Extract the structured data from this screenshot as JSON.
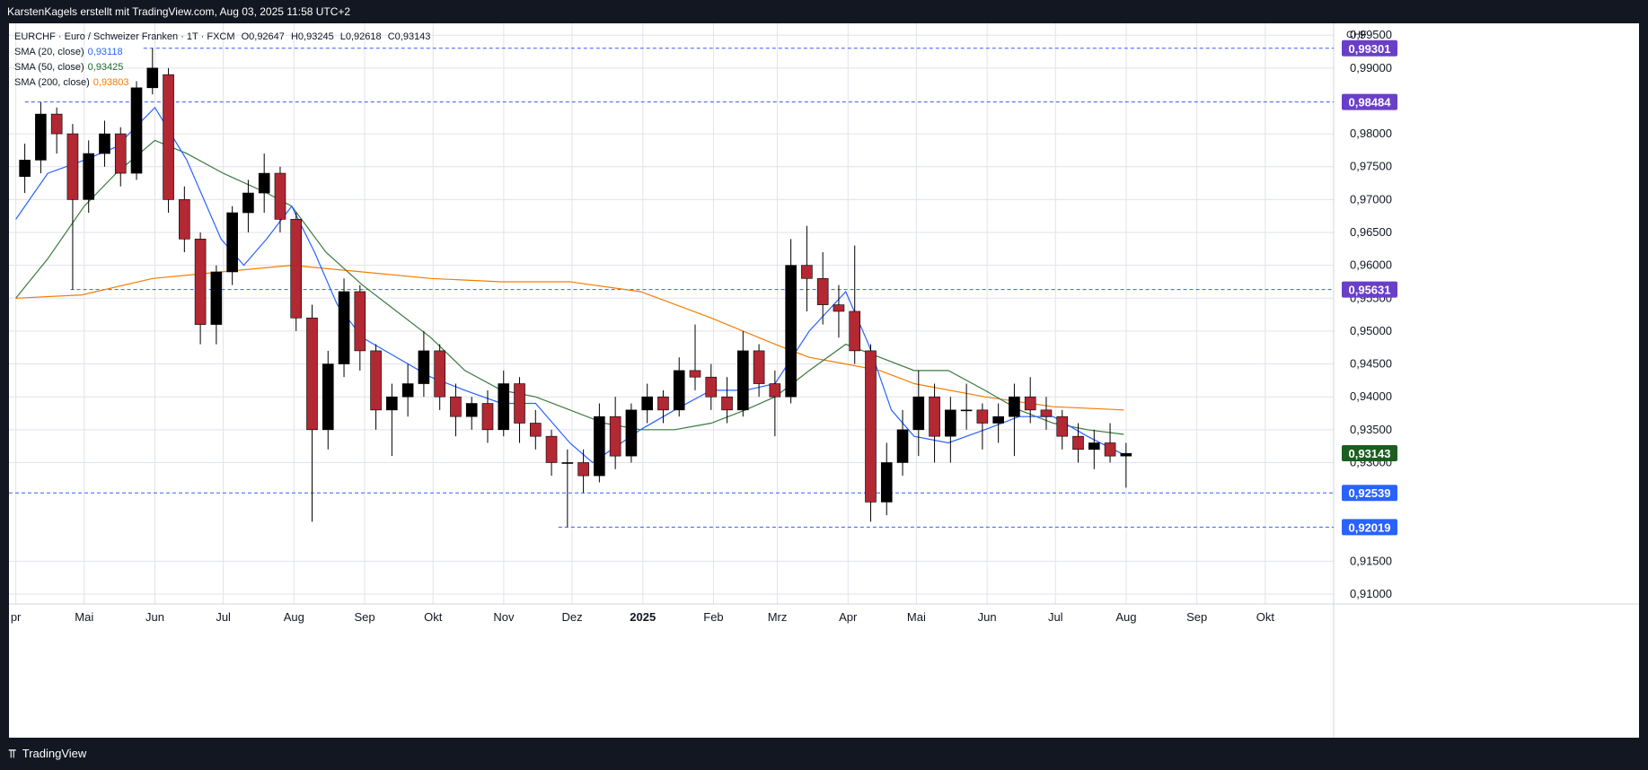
{
  "header": {
    "text": "KarstenKagels erstellt mit TradingView.com, Aug 03, 2025 11:58 UTC+2"
  },
  "footer": {
    "brand": "TradingView"
  },
  "legend": {
    "symbol": "EURCHF · Euro / Schweizer Franken · 1T · FXCM",
    "ohlc": {
      "o_label": "O",
      "o": "0,92647",
      "h_label": "H",
      "h": "0,93245",
      "l_label": "L",
      "l": "0,92618",
      "c_label": "C",
      "c": "0,93143"
    },
    "indicators": [
      {
        "label": "SMA (20, close)",
        "value": "0,93118",
        "color": "#2962ff"
      },
      {
        "label": "SMA (50, close)",
        "value": "0,93425",
        "color": "#1e6b2e"
      },
      {
        "label": "SMA (200, close)",
        "value": "0,93803",
        "color": "#f57c00"
      }
    ]
  },
  "colors": {
    "up": "#000000",
    "down": "#b22833",
    "grid": "#e0e3eb",
    "hline": "#3d5afe",
    "purple": "#6a3fc8",
    "blue": "#2962ff",
    "green_label": "#1b5e20"
  },
  "chart_data": {
    "type": "candlestick",
    "currency": "CHF",
    "ylim": [
      0.9085,
      0.9968
    ],
    "y_ticks": [
      "0,99500",
      "0,99000",
      "0,98000",
      "0,97500",
      "0,97000",
      "0,96500",
      "0,96000",
      "0,95500",
      "0,95000",
      "0,94500",
      "0,94000",
      "0,93500",
      "0,93000",
      "0,91500",
      "0,91000"
    ],
    "y_tick_values": [
      0.995,
      0.99,
      0.98,
      0.975,
      0.97,
      0.965,
      0.96,
      0.955,
      0.95,
      0.945,
      0.94,
      0.935,
      0.93,
      0.915,
      0.91
    ],
    "x_ticks": [
      {
        "label": "pr",
        "date": "2024-04-01"
      },
      {
        "label": "Mai",
        "date": "2024-05-01"
      },
      {
        "label": "Jun",
        "date": "2024-06-01"
      },
      {
        "label": "Jul",
        "date": "2024-07-01"
      },
      {
        "label": "Aug",
        "date": "2024-08-01"
      },
      {
        "label": "Sep",
        "date": "2024-09-01"
      },
      {
        "label": "Okt",
        "date": "2024-10-01"
      },
      {
        "label": "Nov",
        "date": "2024-11-01"
      },
      {
        "label": "Dez",
        "date": "2024-12-01"
      },
      {
        "label": "2025",
        "date": "2025-01-01",
        "bold": true
      },
      {
        "label": "Feb",
        "date": "2025-02-01"
      },
      {
        "label": "Mrz",
        "date": "2025-03-01"
      },
      {
        "label": "Apr",
        "date": "2025-04-01"
      },
      {
        "label": "Mai",
        "date": "2025-05-01"
      },
      {
        "label": "Jun",
        "date": "2025-06-01"
      },
      {
        "label": "Jul",
        "date": "2025-07-01"
      },
      {
        "label": "Aug",
        "date": "2025-08-01"
      },
      {
        "label": "Sep",
        "date": "2025-09-01"
      },
      {
        "label": "Okt",
        "date": "2025-10-01"
      }
    ],
    "x_range": [
      "2024-03-29",
      "2025-10-31"
    ],
    "price_labels": [
      {
        "text": "0,99301",
        "value": 0.99301,
        "color": "purple",
        "line_start": "2024-05-27"
      },
      {
        "text": "0,98484",
        "value": 0.98484,
        "color": "purple",
        "line_start": "2024-04-05"
      },
      {
        "text": "0,95631",
        "value": 0.95631,
        "color": "purple",
        "line_start": "2024-04-25"
      },
      {
        "text": "0,93143",
        "value": 0.93143,
        "color": "green",
        "line_start": null
      },
      {
        "text": "0,92539",
        "value": 0.92539,
        "color": "blue",
        "line_start": "2024-03-29"
      },
      {
        "text": "0,92019",
        "value": 0.92019,
        "color": "blue",
        "line_start": "2024-11-25"
      }
    ],
    "candles": [
      [
        "2024-04-01",
        0.9735,
        0.9785,
        0.971,
        0.976
      ],
      [
        "2024-04-08",
        0.976,
        0.9848,
        0.974,
        0.983
      ],
      [
        "2024-04-15",
        0.983,
        0.984,
        0.977,
        0.98
      ],
      [
        "2024-04-22",
        0.98,
        0.9815,
        0.9563,
        0.97
      ],
      [
        "2024-04-29",
        0.97,
        0.979,
        0.968,
        0.977
      ],
      [
        "2024-05-06",
        0.977,
        0.982,
        0.975,
        0.98
      ],
      [
        "2024-05-13",
        0.98,
        0.981,
        0.972,
        0.974
      ],
      [
        "2024-05-20",
        0.974,
        0.988,
        0.973,
        0.987
      ],
      [
        "2024-05-27",
        0.987,
        0.993,
        0.986,
        0.99
      ],
      [
        "2024-06-03",
        0.989,
        0.99,
        0.968,
        0.97
      ],
      [
        "2024-06-10",
        0.97,
        0.972,
        0.962,
        0.964
      ],
      [
        "2024-06-17",
        0.964,
        0.965,
        0.948,
        0.951
      ],
      [
        "2024-06-24",
        0.951,
        0.96,
        0.948,
        0.959
      ],
      [
        "2024-07-01",
        0.959,
        0.969,
        0.957,
        0.968
      ],
      [
        "2024-07-08",
        0.968,
        0.973,
        0.965,
        0.971
      ],
      [
        "2024-07-15",
        0.971,
        0.977,
        0.968,
        0.974
      ],
      [
        "2024-07-22",
        0.974,
        0.975,
        0.965,
        0.967
      ],
      [
        "2024-07-29",
        0.967,
        0.968,
        0.95,
        0.952
      ],
      [
        "2024-08-05",
        0.952,
        0.954,
        0.921,
        0.935
      ],
      [
        "2024-08-12",
        0.935,
        0.947,
        0.932,
        0.945
      ],
      [
        "2024-08-19",
        0.945,
        0.958,
        0.943,
        0.956
      ],
      [
        "2024-08-26",
        0.956,
        0.957,
        0.944,
        0.947
      ],
      [
        "2024-09-02",
        0.947,
        0.948,
        0.935,
        0.938
      ],
      [
        "2024-09-09",
        0.938,
        0.942,
        0.931,
        0.94
      ],
      [
        "2024-09-16",
        0.94,
        0.945,
        0.937,
        0.942
      ],
      [
        "2024-09-23",
        0.942,
        0.95,
        0.94,
        0.947
      ],
      [
        "2024-09-30",
        0.947,
        0.948,
        0.938,
        0.94
      ],
      [
        "2024-10-07",
        0.94,
        0.942,
        0.934,
        0.937
      ],
      [
        "2024-10-14",
        0.937,
        0.94,
        0.935,
        0.939
      ],
      [
        "2024-10-21",
        0.939,
        0.941,
        0.933,
        0.935
      ],
      [
        "2024-10-28",
        0.935,
        0.944,
        0.934,
        0.942
      ],
      [
        "2024-11-04",
        0.942,
        0.943,
        0.933,
        0.936
      ],
      [
        "2024-11-11",
        0.936,
        0.938,
        0.932,
        0.934
      ],
      [
        "2024-11-18",
        0.934,
        0.935,
        0.928,
        0.93
      ],
      [
        "2024-11-25",
        0.93,
        0.932,
        0.9202,
        0.93
      ],
      [
        "2024-12-02",
        0.93,
        0.932,
        0.9254,
        0.928
      ],
      [
        "2024-12-09",
        0.928,
        0.939,
        0.927,
        0.937
      ],
      [
        "2024-12-16",
        0.937,
        0.94,
        0.929,
        0.931
      ],
      [
        "2024-12-23",
        0.931,
        0.939,
        0.93,
        0.938
      ],
      [
        "2024-12-30",
        0.938,
        0.942,
        0.936,
        0.94
      ],
      [
        "2025-01-06",
        0.94,
        0.941,
        0.936,
        0.938
      ],
      [
        "2025-01-13",
        0.938,
        0.946,
        0.937,
        0.944
      ],
      [
        "2025-01-20",
        0.944,
        0.951,
        0.941,
        0.943
      ],
      [
        "2025-01-27",
        0.943,
        0.945,
        0.938,
        0.94
      ],
      [
        "2025-02-03",
        0.94,
        0.943,
        0.936,
        0.938
      ],
      [
        "2025-02-10",
        0.938,
        0.95,
        0.937,
        0.947
      ],
      [
        "2025-02-17",
        0.947,
        0.948,
        0.94,
        0.942
      ],
      [
        "2025-02-24",
        0.942,
        0.944,
        0.934,
        0.94
      ],
      [
        "2025-03-03",
        0.94,
        0.964,
        0.939,
        0.96
      ],
      [
        "2025-03-10",
        0.96,
        0.966,
        0.953,
        0.958
      ],
      [
        "2025-03-17",
        0.958,
        0.962,
        0.951,
        0.954
      ],
      [
        "2025-03-24",
        0.954,
        0.957,
        0.949,
        0.953
      ],
      [
        "2025-03-31",
        0.953,
        0.963,
        0.945,
        0.947
      ],
      [
        "2025-04-07",
        0.947,
        0.948,
        0.921,
        0.924
      ],
      [
        "2025-04-14",
        0.924,
        0.933,
        0.922,
        0.93
      ],
      [
        "2025-04-21",
        0.93,
        0.938,
        0.928,
        0.935
      ],
      [
        "2025-04-28",
        0.935,
        0.944,
        0.931,
        0.94
      ],
      [
        "2025-05-05",
        0.94,
        0.942,
        0.93,
        0.934
      ],
      [
        "2025-05-12",
        0.934,
        0.94,
        0.93,
        0.938
      ],
      [
        "2025-05-19",
        0.938,
        0.942,
        0.935,
        0.938
      ],
      [
        "2025-05-26",
        0.938,
        0.939,
        0.932,
        0.936
      ],
      [
        "2025-06-02",
        0.936,
        0.939,
        0.933,
        0.937
      ],
      [
        "2025-06-09",
        0.937,
        0.942,
        0.931,
        0.94
      ],
      [
        "2025-06-16",
        0.94,
        0.943,
        0.936,
        0.938
      ],
      [
        "2025-06-23",
        0.938,
        0.94,
        0.935,
        0.937
      ],
      [
        "2025-06-30",
        0.937,
        0.938,
        0.932,
        0.934
      ],
      [
        "2025-07-07",
        0.934,
        0.936,
        0.93,
        0.932
      ],
      [
        "2025-07-14",
        0.932,
        0.935,
        0.929,
        0.933
      ],
      [
        "2025-07-21",
        0.933,
        0.936,
        0.93,
        0.931
      ],
      [
        "2025-07-28",
        0.931,
        0.933,
        0.9262,
        0.9314
      ]
    ],
    "sma20": [
      [
        "2024-04-01",
        0.967
      ],
      [
        "2024-04-15",
        0.974
      ],
      [
        "2024-05-01",
        0.976
      ],
      [
        "2024-05-15",
        0.978
      ],
      [
        "2024-06-01",
        0.984
      ],
      [
        "2024-06-15",
        0.976
      ],
      [
        "2024-06-30",
        0.964
      ],
      [
        "2024-07-10",
        0.96
      ],
      [
        "2024-07-20",
        0.964
      ],
      [
        "2024-07-31",
        0.969
      ],
      [
        "2024-08-10",
        0.962
      ],
      [
        "2024-08-20",
        0.954
      ],
      [
        "2024-08-31",
        0.949
      ],
      [
        "2024-09-10",
        0.947
      ],
      [
        "2024-09-30",
        0.943
      ],
      [
        "2024-10-15",
        0.941
      ],
      [
        "2024-10-31",
        0.939
      ],
      [
        "2024-11-15",
        0.939
      ],
      [
        "2024-11-30",
        0.933
      ],
      [
        "2024-12-10",
        0.93
      ],
      [
        "2024-12-31",
        0.935
      ],
      [
        "2025-01-15",
        0.938
      ],
      [
        "2025-01-31",
        0.941
      ],
      [
        "2025-02-15",
        0.941
      ],
      [
        "2025-02-28",
        0.942
      ],
      [
        "2025-03-15",
        0.95
      ],
      [
        "2025-03-31",
        0.956
      ],
      [
        "2025-04-10",
        0.948
      ],
      [
        "2025-04-20",
        0.938
      ],
      [
        "2025-04-30",
        0.934
      ],
      [
        "2025-05-15",
        0.933
      ],
      [
        "2025-05-31",
        0.935
      ],
      [
        "2025-06-15",
        0.937
      ],
      [
        "2025-06-30",
        0.937
      ],
      [
        "2025-07-15",
        0.934
      ],
      [
        "2025-07-31",
        0.9312
      ]
    ],
    "sma50": [
      [
        "2024-04-01",
        0.955
      ],
      [
        "2024-04-15",
        0.961
      ],
      [
        "2024-05-01",
        0.969
      ],
      [
        "2024-05-15",
        0.974
      ],
      [
        "2024-06-01",
        0.979
      ],
      [
        "2024-06-15",
        0.977
      ],
      [
        "2024-07-01",
        0.974
      ],
      [
        "2024-07-20",
        0.971
      ],
      [
        "2024-07-31",
        0.969
      ],
      [
        "2024-08-15",
        0.962
      ],
      [
        "2024-08-31",
        0.957
      ],
      [
        "2024-09-15",
        0.953
      ],
      [
        "2024-09-30",
        0.949
      ],
      [
        "2024-10-15",
        0.944
      ],
      [
        "2024-10-31",
        0.941
      ],
      [
        "2024-11-15",
        0.94
      ],
      [
        "2024-11-30",
        0.938
      ],
      [
        "2024-12-15",
        0.936
      ],
      [
        "2024-12-31",
        0.935
      ],
      [
        "2025-01-15",
        0.935
      ],
      [
        "2025-01-31",
        0.936
      ],
      [
        "2025-02-15",
        0.938
      ],
      [
        "2025-02-28",
        0.94
      ],
      [
        "2025-03-15",
        0.944
      ],
      [
        "2025-03-31",
        0.948
      ],
      [
        "2025-04-15",
        0.946
      ],
      [
        "2025-04-30",
        0.944
      ],
      [
        "2025-05-15",
        0.944
      ],
      [
        "2025-05-31",
        0.941
      ],
      [
        "2025-06-15",
        0.938
      ],
      [
        "2025-06-30",
        0.936
      ],
      [
        "2025-07-15",
        0.935
      ],
      [
        "2025-07-31",
        0.9343
      ]
    ],
    "sma200": [
      [
        "2024-04-01",
        0.955
      ],
      [
        "2024-04-30",
        0.9555
      ],
      [
        "2024-05-31",
        0.958
      ],
      [
        "2024-06-30",
        0.959
      ],
      [
        "2024-07-31",
        0.96
      ],
      [
        "2024-08-31",
        0.959
      ],
      [
        "2024-09-30",
        0.958
      ],
      [
        "2024-10-31",
        0.9575
      ],
      [
        "2024-11-30",
        0.9575
      ],
      [
        "2024-12-31",
        0.956
      ],
      [
        "2025-01-31",
        0.952
      ],
      [
        "2025-02-28",
        0.948
      ],
      [
        "2025-03-15",
        0.946
      ],
      [
        "2025-03-31",
        0.945
      ],
      [
        "2025-04-15",
        0.944
      ],
      [
        "2025-04-30",
        0.942
      ],
      [
        "2025-05-31",
        0.94
      ],
      [
        "2025-06-30",
        0.9385
      ],
      [
        "2025-07-31",
        0.938
      ]
    ]
  }
}
